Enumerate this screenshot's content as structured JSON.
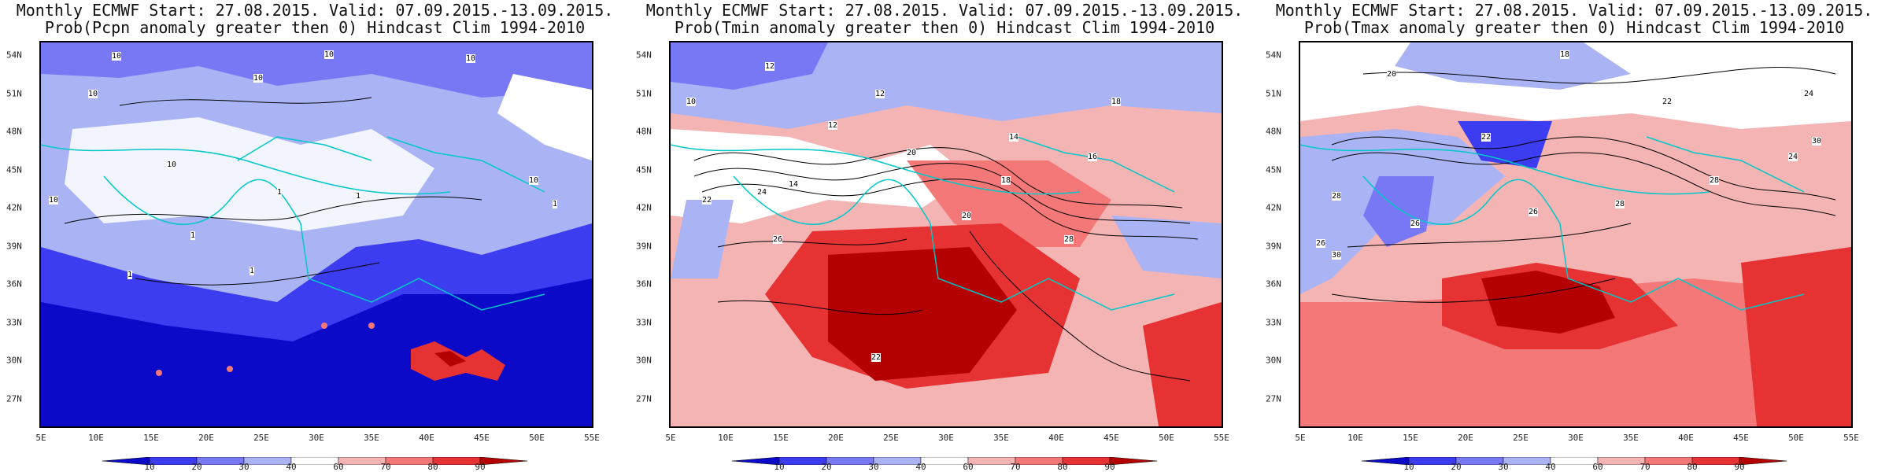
{
  "panels": [
    {
      "title_line1": "Monthly ECMWF Start: 27.08.2015. Valid: 07.09.2015.-13.09.2015.",
      "title_line2": "Prob(Pcpn anomaly greater then 0) Hindcast Clim 1994-2010",
      "contour_labels": [
        "10",
        "10",
        "10",
        "10",
        "10",
        "10",
        "10",
        "10",
        "1",
        "1",
        "1",
        "1",
        "1",
        "1"
      ]
    },
    {
      "title_line1": "Monthly ECMWF Start: 27.08.2015. Valid: 07.09.2015.-13.09.2015.",
      "title_line2": "Prob(Tmin anomaly greater then 0) Hindcast Clim 1994-2010",
      "contour_labels": [
        "10",
        "12",
        "12",
        "12",
        "14",
        "14",
        "16",
        "18",
        "20",
        "22",
        "24",
        "26",
        "28",
        "22",
        "20",
        "18"
      ]
    },
    {
      "title_line1": "Monthly ECMWF Start: 27.08.2015. Valid: 07.09.2015.-13.09.2015.",
      "title_line2": "Prob(Tmax anomaly greater then 0) Hindcast Clim 1994-2010",
      "contour_labels": [
        "18",
        "20",
        "22",
        "24",
        "26",
        "28",
        "30",
        "22",
        "24",
        "26",
        "28",
        "30",
        "26",
        "28"
      ]
    }
  ],
  "lat_labels": [
    "54N",
    "51N",
    "48N",
    "45N",
    "42N",
    "39N",
    "36N",
    "33N",
    "30N",
    "27N"
  ],
  "lon_labels": [
    "5E",
    "10E",
    "15E",
    "20E",
    "25E",
    "30E",
    "35E",
    "40E",
    "45E",
    "50E",
    "55E"
  ],
  "colorbar": {
    "ticks": [
      "10",
      "20",
      "30",
      "40",
      "60",
      "70",
      "80",
      "90"
    ],
    "colors": [
      "#0a0ac8",
      "#3c3cf0",
      "#7878f5",
      "#aab4f5",
      "#ffffff",
      "#f5b4b4",
      "#f57878",
      "#e63232",
      "#b40000"
    ]
  }
}
